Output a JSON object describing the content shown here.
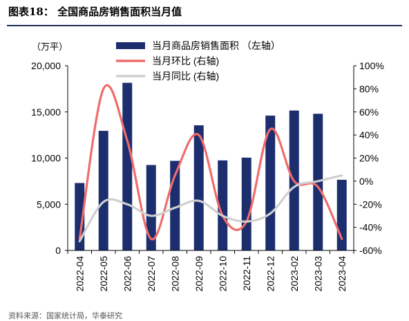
{
  "figure": {
    "title": "图表18：  全国商品房销售面积当月值",
    "source": "资料来源：国家统计局，华泰研究"
  },
  "chart_data": {
    "type": "bar",
    "categories": [
      "2022-04",
      "2022-05",
      "2022-06",
      "2022-07",
      "2022-08",
      "2022-09",
      "2022-10",
      "2022-11",
      "2022-12",
      "2023-02",
      "2023-03",
      "2023-04"
    ],
    "left_axis": {
      "unit_label": "（万平）",
      "ylim": [
        0,
        20000
      ],
      "ticks": [
        0,
        5000,
        10000,
        15000,
        20000
      ],
      "tick_labels": [
        "0",
        "5,000",
        "10,000",
        "15,000",
        "20,000"
      ]
    },
    "right_axis": {
      "ylim": [
        -60,
        100
      ],
      "ticks": [
        -60,
        -40,
        -20,
        0,
        20,
        40,
        60,
        80,
        100
      ],
      "tick_labels": [
        "-60%",
        "-40%",
        "-20%",
        "0%",
        "20%",
        "40%",
        "60%",
        "80%",
        "100%"
      ]
    },
    "series": [
      {
        "name": "当月商品房销售面积 （左轴）",
        "type": "bar",
        "axis": "left",
        "color": "#1c2e6e",
        "values": [
          7300,
          12950,
          18150,
          9250,
          9700,
          13550,
          9750,
          10050,
          14600,
          15150,
          14800,
          7650
        ]
      },
      {
        "name": "当月环比 (右轴)",
        "type": "line",
        "axis": "right",
        "color": "#f06b6b",
        "values": [
          -50,
          80,
          35,
          -50,
          5,
          40,
          -30,
          -35,
          45,
          0,
          -5,
          -50
        ]
      },
      {
        "name": "当月同比 (右轴)",
        "type": "line",
        "axis": "right",
        "color": "#cfcfcf",
        "values": [
          -52,
          -18,
          -20,
          -30,
          -23,
          -17,
          -30,
          -35,
          -28,
          -5,
          0,
          5
        ]
      }
    ],
    "grid": false,
    "legend_position": "top-center"
  }
}
